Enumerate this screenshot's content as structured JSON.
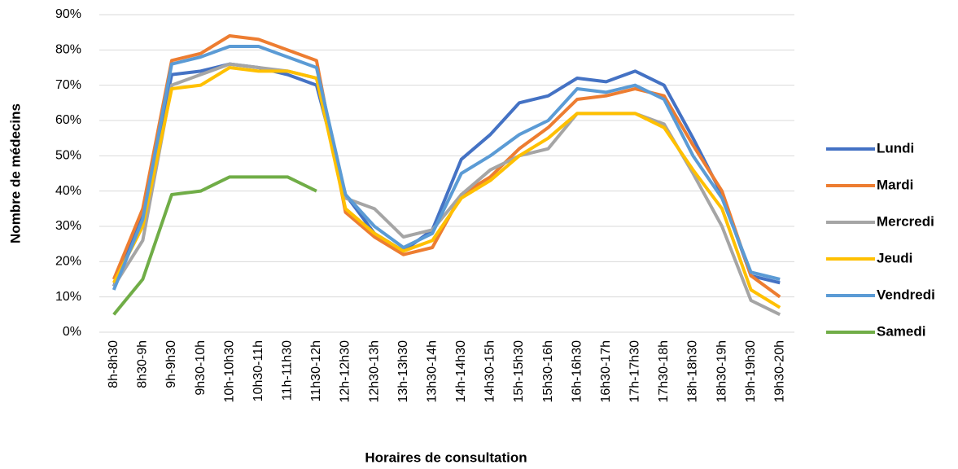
{
  "chart_data": {
    "type": "line",
    "xlabel": "Horaires de consultation",
    "ylabel": "Nombre de médecins",
    "categories": [
      "8h-8h30",
      "8h30-9h",
      "9h-9h30",
      "9h30-10h",
      "10h-10h30",
      "10h30-11h",
      "11h-11h30",
      "11h30-12h",
      "12h-12h30",
      "12h30-13h",
      "13h-13h30",
      "13h30-14h",
      "14h-14h30",
      "14h30-15h",
      "15h-15h30",
      "15h30-16h",
      "16h-16h30",
      "16h30-17h",
      "17h-17h30",
      "17h30-18h",
      "18h-18h30",
      "18h30-19h",
      "19h-19h30",
      "19h30-20h"
    ],
    "series": [
      {
        "name": "Lundi",
        "color": "#4472c4",
        "values": [
          13,
          33,
          73,
          74,
          76,
          75,
          73,
          70,
          39,
          28,
          23,
          29,
          49,
          56,
          65,
          67,
          72,
          71,
          74,
          70,
          55,
          39,
          16,
          14
        ]
      },
      {
        "name": "Mardi",
        "color": "#ed7d31",
        "values": [
          15,
          35,
          77,
          79,
          84,
          83,
          80,
          77,
          34,
          27,
          22,
          24,
          39,
          44,
          52,
          58,
          66,
          67,
          69,
          67,
          53,
          40,
          16,
          10
        ]
      },
      {
        "name": "Mercredi",
        "color": "#a5a5a5",
        "values": [
          13,
          26,
          70,
          73,
          76,
          75,
          74,
          72,
          38,
          35,
          27,
          29,
          39,
          46,
          50,
          52,
          62,
          62,
          62,
          59,
          45,
          30,
          9,
          5
        ]
      },
      {
        "name": "Jeudi",
        "color": "#ffc000",
        "values": [
          14,
          30,
          69,
          70,
          75,
          74,
          74,
          72,
          35,
          28,
          23,
          26,
          38,
          43,
          50,
          55,
          62,
          62,
          62,
          58,
          46,
          35,
          12,
          7
        ]
      },
      {
        "name": "Vendredi",
        "color": "#5b9bd5",
        "values": [
          12,
          32,
          76,
          78,
          81,
          81,
          78,
          75,
          39,
          30,
          24,
          28,
          45,
          50,
          56,
          60,
          69,
          68,
          70,
          66,
          50,
          38,
          17,
          15
        ]
      },
      {
        "name": "Samedi",
        "color": "#70ad47",
        "values": [
          5,
          15,
          39,
          40,
          44,
          44,
          44,
          40,
          null,
          null,
          null,
          null,
          null,
          null,
          null,
          null,
          null,
          null,
          null,
          null,
          null,
          null,
          null,
          null
        ]
      }
    ],
    "ylim": [
      0,
      90
    ],
    "yticks": [
      {
        "value": 0,
        "label": "0%"
      },
      {
        "value": 10,
        "label": "10%"
      },
      {
        "value": 20,
        "label": "20%"
      },
      {
        "value": 30,
        "label": "30%"
      },
      {
        "value": 40,
        "label": "40%"
      },
      {
        "value": 50,
        "label": "50%"
      },
      {
        "value": 60,
        "label": "60%"
      },
      {
        "value": 70,
        "label": "70%"
      },
      {
        "value": 80,
        "label": "80%"
      },
      {
        "value": 90,
        "label": "90%"
      }
    ],
    "grid": true,
    "legend": "right"
  }
}
